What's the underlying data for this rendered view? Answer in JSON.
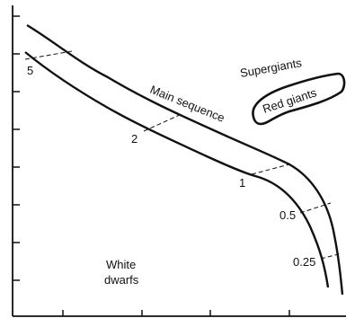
{
  "labels": {
    "supergiants": "Supergiants",
    "red_giants": "Red giants",
    "main_sequence": "Main sequence",
    "white_dwarfs_line1": "White",
    "white_dwarfs_line2": "dwarfs"
  },
  "mass_labels": [
    "5",
    "2",
    "1",
    "0.5",
    "0.25"
  ],
  "colors": {
    "ink": "#111111",
    "background": "#ffffff"
  }
}
